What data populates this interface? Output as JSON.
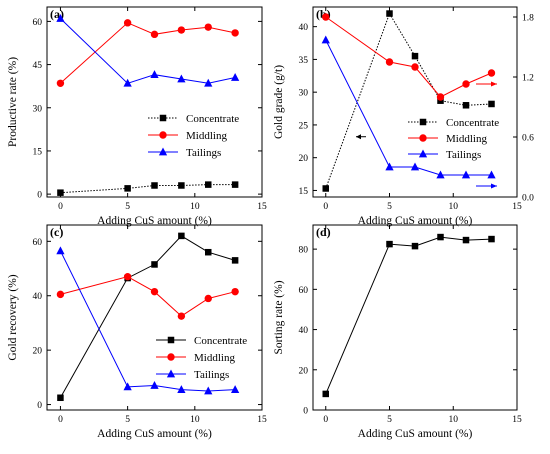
{
  "chart_data": [
    {
      "panel": "(a)",
      "type": "line",
      "xlabel": "Adding CuS amount (%)",
      "ylabel": "Productive rate (%)",
      "xlim": [
        -1,
        15
      ],
      "ylim": [
        -1,
        65
      ],
      "xticks": [
        0,
        5,
        10,
        15
      ],
      "yticks": [
        0,
        15,
        30,
        45,
        60
      ],
      "x": [
        0,
        5,
        7,
        9,
        11,
        13
      ],
      "series": [
        {
          "name": "Concentrate",
          "color": "#000000",
          "marker": "square",
          "line": "dotted",
          "values": [
            0.5,
            2.0,
            3.0,
            3.0,
            3.3,
            3.3
          ]
        },
        {
          "name": "Middling",
          "color": "#ff0000",
          "marker": "circle",
          "line": "solid",
          "values": [
            38.5,
            59.5,
            55.5,
            57.0,
            58.0,
            56.0
          ]
        },
        {
          "name": "Tailings",
          "color": "#0000ff",
          "marker": "triangle",
          "line": "solid",
          "values": [
            61.0,
            38.5,
            41.5,
            40.0,
            38.5,
            40.5
          ]
        }
      ],
      "legend_position": "center-right"
    },
    {
      "panel": "(b)",
      "type": "line",
      "xlabel": "Adding CuS amount (%)",
      "ylabel": "Gold grade (g/t)",
      "xlim": [
        -1,
        15
      ],
      "ylim": [
        14,
        43
      ],
      "y2lim": [
        0,
        1.9
      ],
      "xticks": [
        0,
        5,
        10,
        15
      ],
      "yticks": [
        15,
        20,
        25,
        30,
        35,
        40
      ],
      "y2ticks": [
        0.0,
        0.6,
        1.2,
        1.8
      ],
      "x": [
        0,
        5,
        7,
        9,
        11,
        13
      ],
      "series": [
        {
          "name": "Concentrate",
          "color": "#000000",
          "marker": "square",
          "line": "dotted",
          "axis": "left",
          "values": [
            15.3,
            42.0,
            35.5,
            28.7,
            28.0,
            28.2
          ]
        },
        {
          "name": "Middling",
          "color": "#ff0000",
          "marker": "circle",
          "line": "solid",
          "axis": "right",
          "values": [
            1.8,
            1.35,
            1.3,
            1.0,
            1.13,
            1.24
          ]
        },
        {
          "name": "Tailings",
          "color": "#0000ff",
          "marker": "triangle",
          "line": "solid",
          "axis": "right",
          "values": [
            1.57,
            0.3,
            0.3,
            0.22,
            0.22,
            0.22
          ]
        }
      ],
      "legend_position": "lower-right"
    },
    {
      "panel": "(c)",
      "type": "line",
      "xlabel": "Adding CuS amount (%)",
      "ylabel": "Gold recovery (%)",
      "xlim": [
        -1,
        15
      ],
      "ylim": [
        -2,
        66
      ],
      "xticks": [
        0,
        5,
        10,
        15
      ],
      "yticks": [
        0,
        20,
        40,
        60
      ],
      "x": [
        0,
        5,
        7,
        9,
        11,
        13
      ],
      "series": [
        {
          "name": "Concentrate",
          "color": "#000000",
          "marker": "square",
          "line": "solid",
          "values": [
            2.5,
            46.5,
            51.5,
            62.0,
            56.0,
            53.0
          ]
        },
        {
          "name": "Middling",
          "color": "#ff0000",
          "marker": "circle",
          "line": "solid",
          "values": [
            40.5,
            47.0,
            41.5,
            32.5,
            39.0,
            41.5
          ]
        },
        {
          "name": "Tailings",
          "color": "#0000ff",
          "marker": "triangle",
          "line": "solid",
          "values": [
            56.5,
            6.5,
            7.0,
            5.5,
            5.0,
            5.5
          ]
        }
      ],
      "legend_position": "center-right"
    },
    {
      "panel": "(d)",
      "type": "line",
      "xlabel": "Adding CuS amount (%)",
      "ylabel": "Sorting rate (%)",
      "xlim": [
        -1,
        15
      ],
      "ylim": [
        0,
        92
      ],
      "xticks": [
        0,
        5,
        10,
        15
      ],
      "yticks": [
        0,
        20,
        40,
        60,
        80
      ],
      "x": [
        0,
        5,
        7,
        9,
        11,
        13
      ],
      "series": [
        {
          "color": "#000000",
          "marker": "square",
          "line": "solid",
          "values": [
            8.0,
            82.5,
            81.5,
            86.0,
            84.5,
            85.0
          ]
        }
      ]
    }
  ]
}
